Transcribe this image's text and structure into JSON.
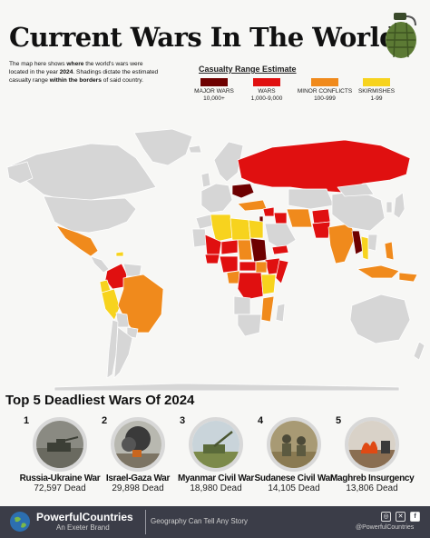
{
  "header": {
    "title": "Current Wars In The World",
    "desc_intro": "The map here shows ",
    "desc_b1": "where",
    "desc_mid1": " the world's wars were located in the year ",
    "desc_b2": "2024",
    "desc_mid2": ". Shadings dictate the estimated casualty range ",
    "desc_b3": "within the borders",
    "desc_end": " of said country."
  },
  "legend": {
    "title": "Casualty Range Estimate",
    "items": [
      {
        "label": "MAJOR WARS",
        "range": "10,000+",
        "color": "#6e0000"
      },
      {
        "label": "WARS",
        "range": "1,000-9,000",
        "color": "#e01010"
      },
      {
        "label": "MINOR CONFLICTS",
        "range": "100-999",
        "color": "#f08a1c"
      },
      {
        "label": "SKIRMISHES",
        "range": "1-99",
        "color": "#f7d31e"
      }
    ]
  },
  "map_colors": {
    "none": "#d6d6d6",
    "ocean": "#f7f7f5",
    "border": "#ffffff"
  },
  "top5": {
    "title": "Top 5 Deadliest Wars Of 2024",
    "wars": [
      {
        "rank": "1",
        "name": "Russia-Ukraine War",
        "dead": "72,597 Dead",
        "icon": "tank-photo"
      },
      {
        "rank": "2",
        "name": "Israel-Gaza War",
        "dead": "29,898 Dead",
        "icon": "smoke-photo"
      },
      {
        "rank": "3",
        "name": "Myanmar Civil War",
        "dead": "18,980 Dead",
        "icon": "artillery-photo"
      },
      {
        "rank": "4",
        "name": "Sudanese Civil War",
        "dead": "14,105 Dead",
        "icon": "soldiers-photo"
      },
      {
        "rank": "5",
        "name": "Maghreb Insurgency",
        "dead": "13,806 Dead",
        "icon": "fire-photo"
      }
    ]
  },
  "footer": {
    "brand": "PowerfulCountries",
    "brand_sub": "An Exeter Brand",
    "tagline": "Geography Can Tell Any Story",
    "handle": "@PowerfulCountries"
  }
}
